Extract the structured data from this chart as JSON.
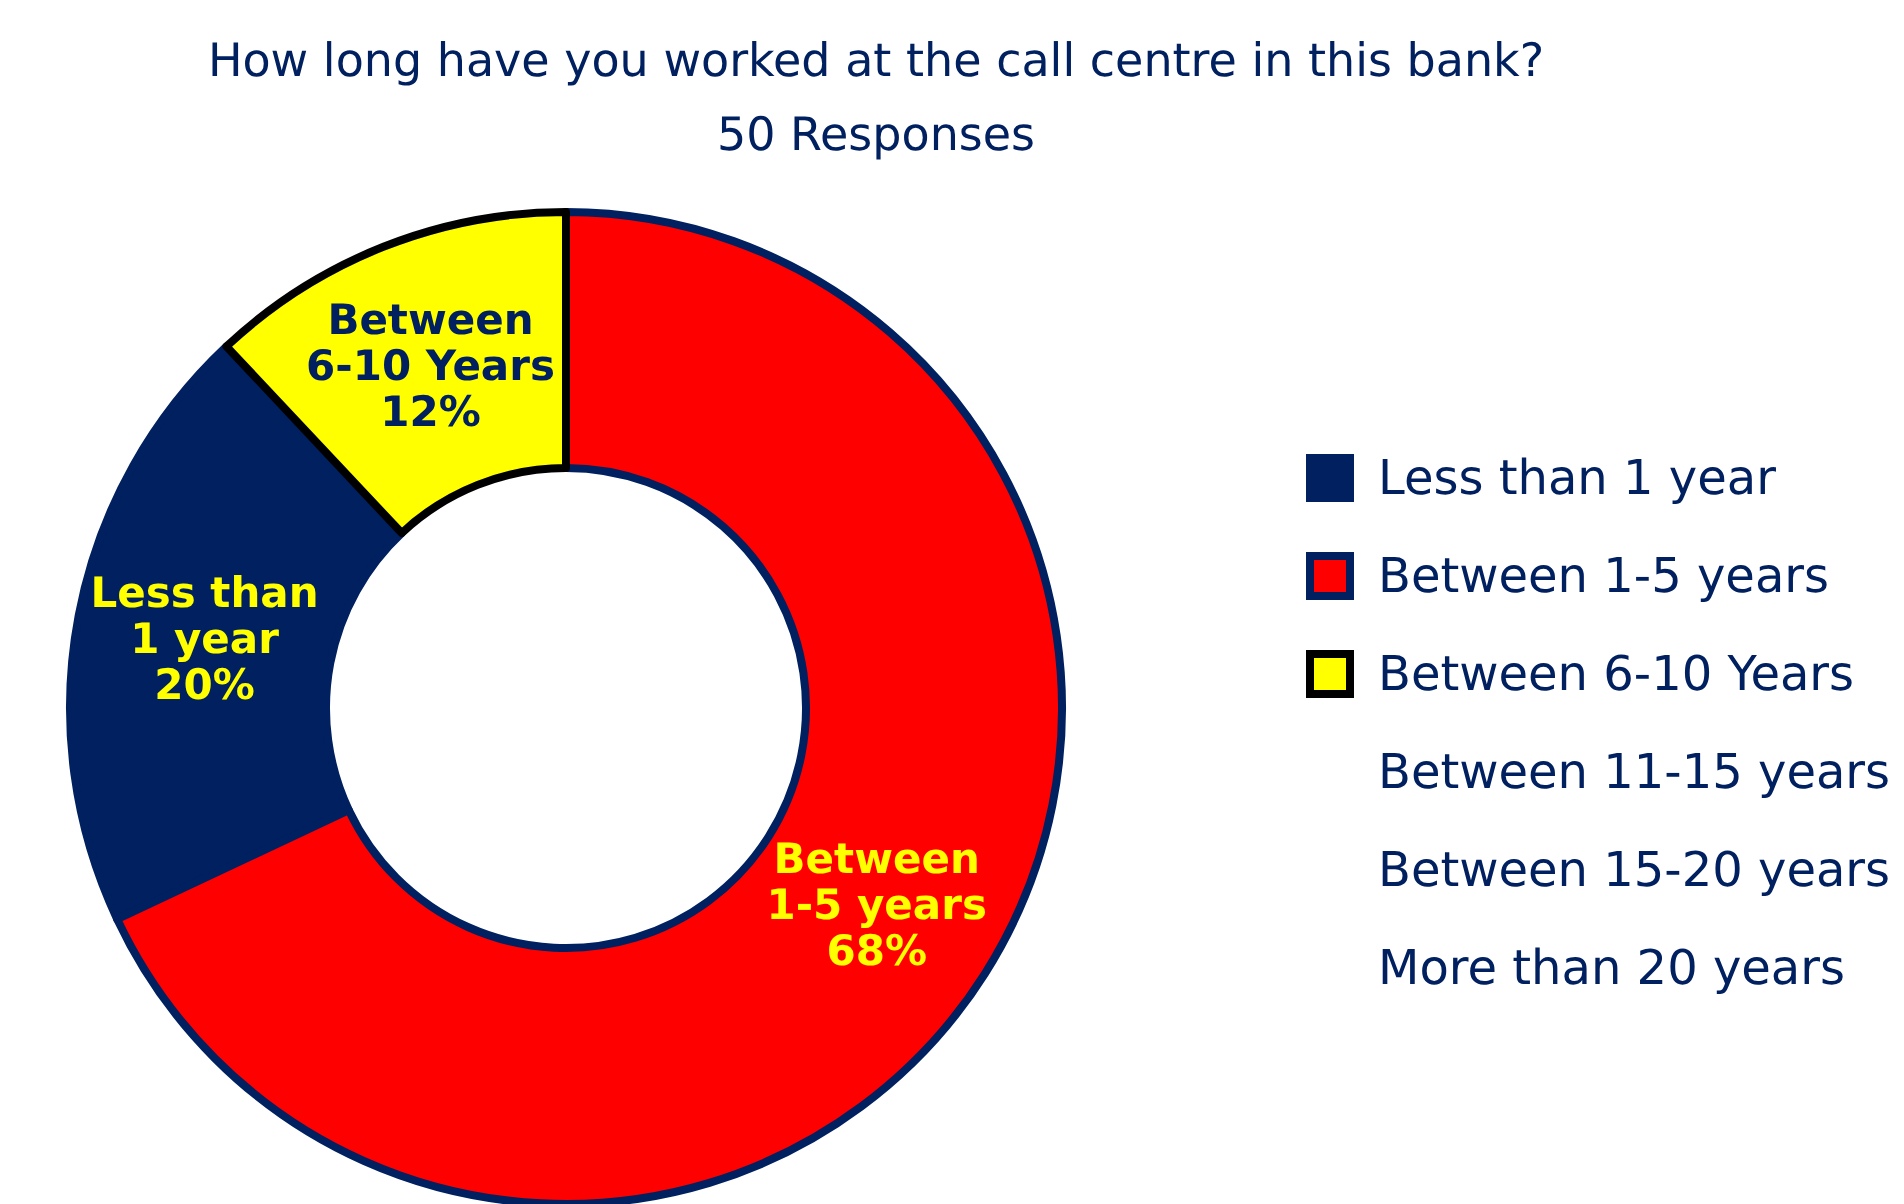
{
  "chart_data": {
    "type": "donut",
    "title": "How long have you worked at the call centre in this bank?",
    "subtitle": "50 Responses",
    "categories": [
      "Less than 1 year",
      "Between 1-5 years",
      "Between 6-10 Years",
      "Between 11-15 years",
      "Between 15-20 years",
      "More than 20 years"
    ],
    "values": [
      20,
      68,
      12,
      0,
      0,
      0
    ],
    "colors": [
      "#002060",
      "#ff0000",
      "#ffff00",
      null,
      null,
      null
    ],
    "value_labels": [
      "20%",
      "68%",
      "12%",
      null,
      null,
      null
    ],
    "legend": "right"
  }
}
